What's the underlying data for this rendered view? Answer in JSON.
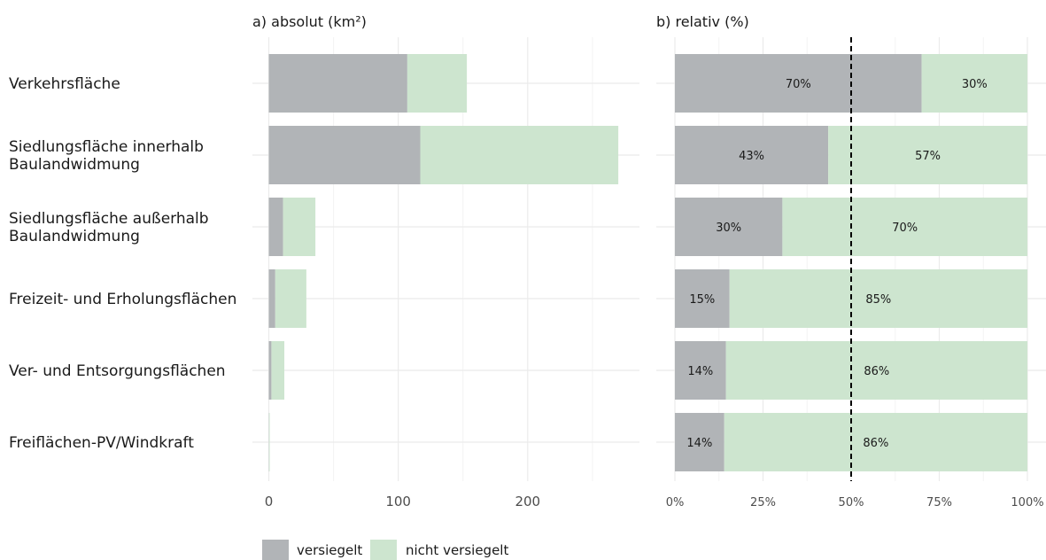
{
  "chart_data": [
    {
      "type": "bar",
      "orientation": "horizontal",
      "stacked": true,
      "title": "a) absolut (km²)",
      "categories": [
        [
          "Verkehrsfläche"
        ],
        [
          "Siedlungsfläche innerhalb",
          "Baulandwidmung"
        ],
        [
          "Siedlungsfläche außerhalb",
          "Baulandwidmung"
        ],
        [
          "Freizeit- und Erholungsflächen"
        ],
        [
          "Ver- und Entsorgungsflächen"
        ],
        [
          "Freiflächen-PV/Windkraft"
        ]
      ],
      "series": [
        {
          "name": "versiegelt",
          "color": "#b1b4b7",
          "values": [
            107,
            117,
            11,
            5,
            2,
            0.2
          ]
        },
        {
          "name": "nicht versiegelt",
          "color": "#cde5cf",
          "values": [
            46,
            153,
            25,
            24,
            10,
            0.5
          ]
        }
      ],
      "xlim": [
        0,
        280
      ],
      "xticks": [
        0,
        100,
        200
      ],
      "xtick_labels": [
        "0",
        "100",
        "200"
      ],
      "grid": true
    },
    {
      "type": "bar",
      "orientation": "horizontal",
      "stacked": true,
      "title": "b) relativ (%)",
      "series": [
        {
          "name": "versiegelt",
          "color": "#b1b4b7",
          "values": [
            70,
            43.5,
            30.5,
            15.5,
            14.5,
            14
          ],
          "labels": [
            "70%",
            "43%",
            "30%",
            "15%",
            "14%",
            "14%"
          ]
        },
        {
          "name": "nicht versiegelt",
          "color": "#cde5cf",
          "values": [
            30,
            56.5,
            69.5,
            84.5,
            85.5,
            86
          ],
          "labels": [
            "30%",
            "57%",
            "70%",
            "85%",
            "86%",
            "86%"
          ]
        }
      ],
      "xlim": [
        0,
        100
      ],
      "xticks": [
        0,
        25,
        50,
        75,
        100
      ],
      "xtick_labels": [
        "0%",
        "25%",
        "50%",
        "75%",
        "100%"
      ],
      "reference_line": 50,
      "grid": true
    }
  ],
  "legend": {
    "placement": "bottom-left",
    "items": [
      {
        "label": "versiegelt",
        "color": "#b1b4b7"
      },
      {
        "label": "nicht versiegelt",
        "color": "#cde5cf"
      }
    ]
  }
}
